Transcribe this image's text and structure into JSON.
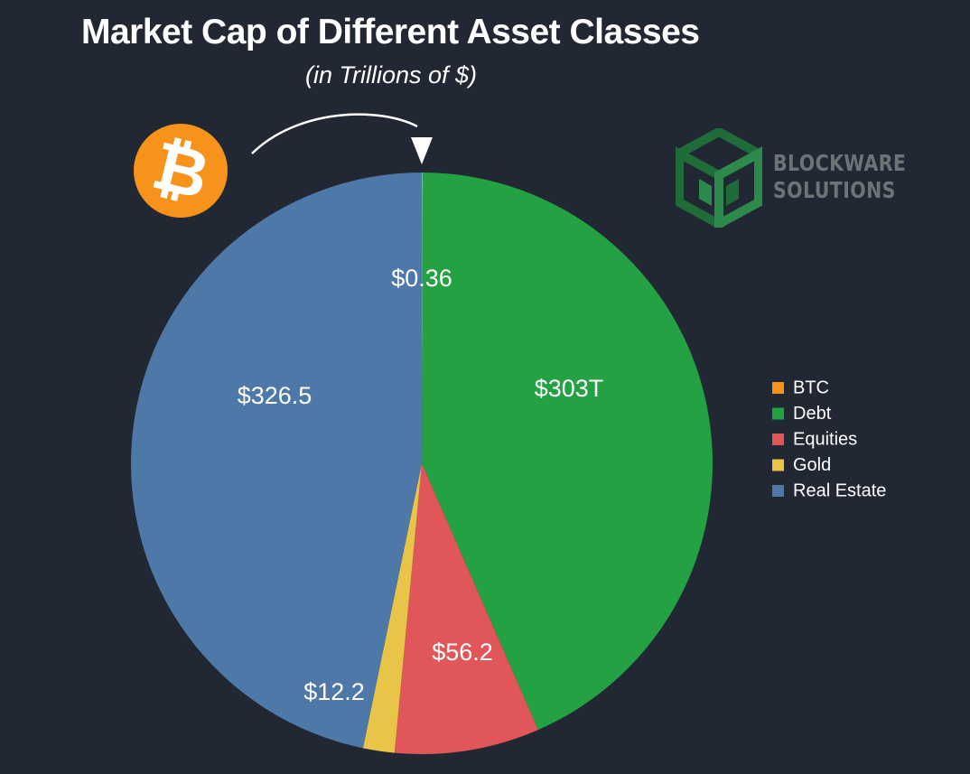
{
  "title": "Market Cap of Different Asset Classes",
  "subtitle": "(in Trillions of $)",
  "brand": {
    "line1": "BLOCKWARE",
    "line2": "SOLUTIONS"
  },
  "bitcoin_icon": "bitcoin-icon",
  "chart_data": {
    "type": "pie",
    "title": "Market Cap of Different Asset Classes",
    "subtitle": "(in Trillions of $)",
    "legend_position": "right",
    "start_angle_deg": 0,
    "direction": "clockwise",
    "slices": [
      {
        "name": "BTC",
        "value": 0.36,
        "label": "$0.36",
        "color": "#f7931a"
      },
      {
        "name": "Debt",
        "value": 303,
        "label": "$303T",
        "color": "#23a143"
      },
      {
        "name": "Equities",
        "value": 56.2,
        "label": "$56.2",
        "color": "#e15658"
      },
      {
        "name": "Gold",
        "value": 12.2,
        "label": "$12.2",
        "color": "#e8c548"
      },
      {
        "name": "Real Estate",
        "value": 326.5,
        "label": "$326.5",
        "color": "#4e78a8"
      }
    ]
  }
}
